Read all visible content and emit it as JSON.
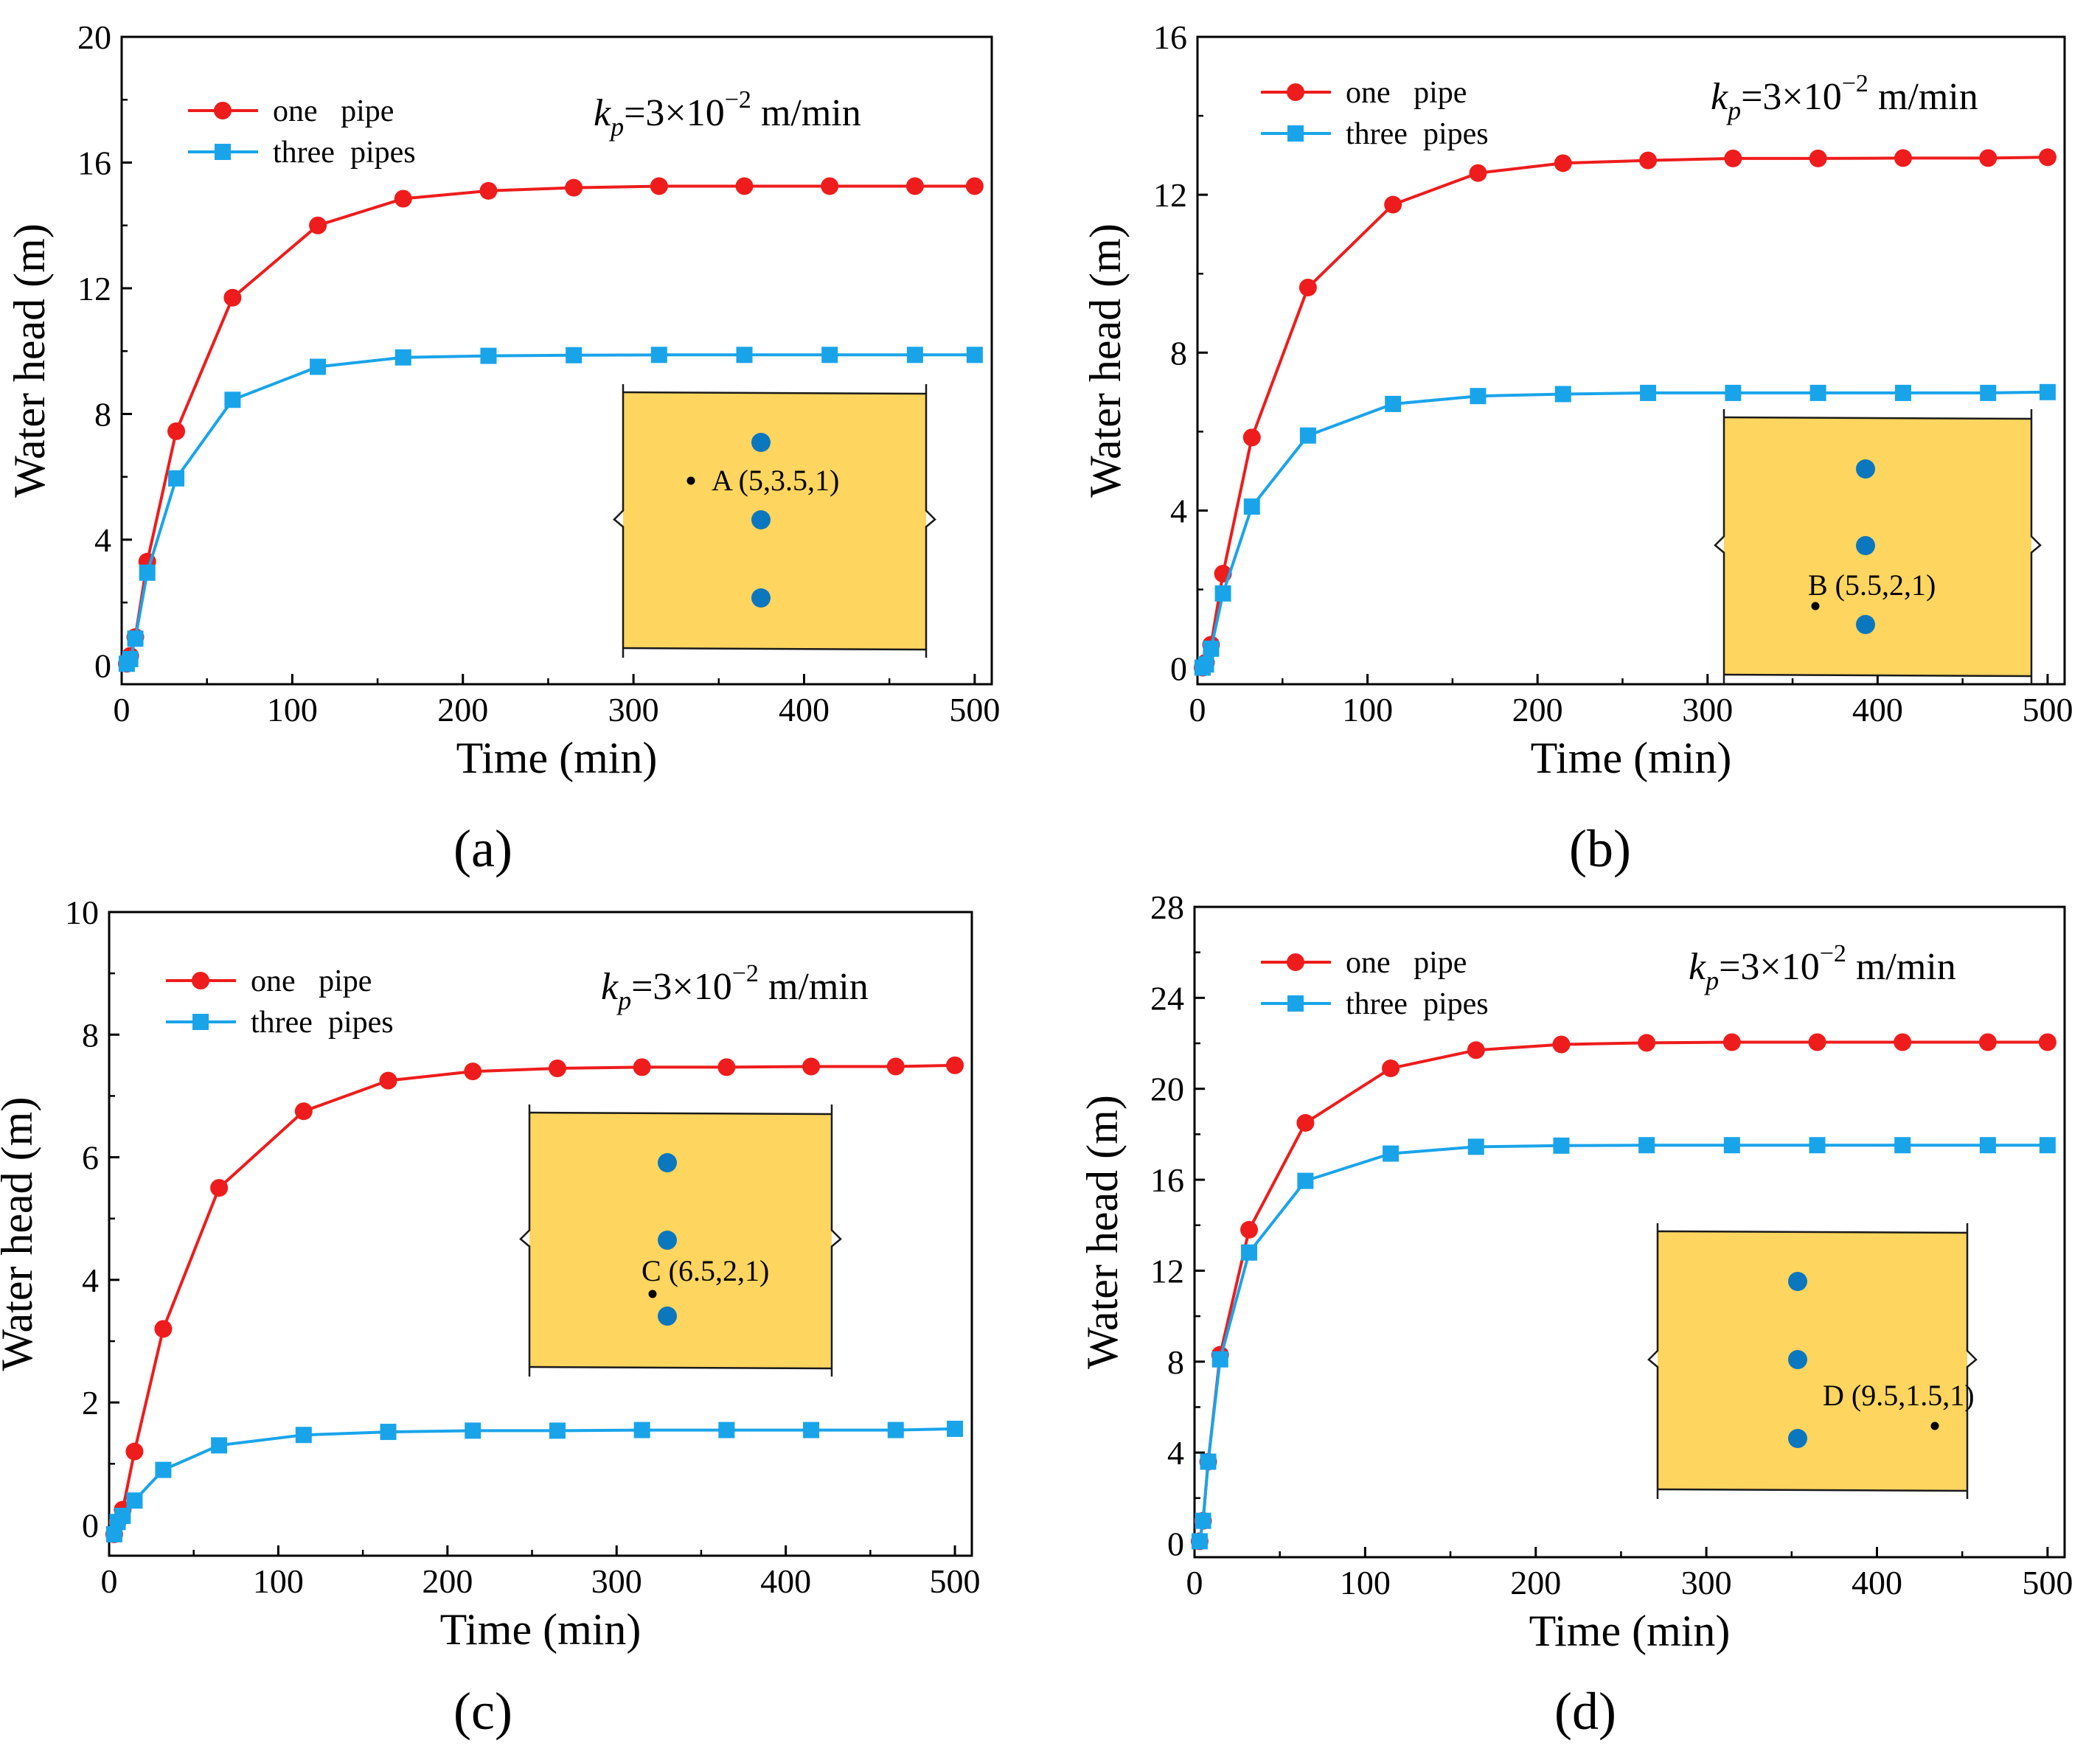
{
  "figure": {
    "colors": {
      "one_pipe": "#ee1c1c",
      "three_pipes": "#19a4ea",
      "inset_fill": "#fdd55f",
      "pipe_dot": "#0b77bf"
    }
  },
  "chart_data": [
    {
      "type": "line",
      "panel": "a",
      "caption": "(a)",
      "xlabel": "Time (min)",
      "ylabel": "Water head (m)",
      "xlim": [
        0,
        510
      ],
      "ylim": [
        -0.6,
        20
      ],
      "xticks": [
        0,
        100,
        200,
        300,
        400,
        500
      ],
      "yticks": [
        0,
        4,
        8,
        12,
        16,
        20
      ],
      "grid": false,
      "legend": "top-left",
      "annotation": {
        "k": "k",
        "sub": "p",
        "rest": "=3×10",
        "exp": "−2",
        "unit": " m/min"
      },
      "inset_label": "A (5,3.5,1)",
      "series": [
        {
          "name": "one   pipe",
          "marker": "circle",
          "x": [
            3,
            5,
            8,
            15,
            32,
            65,
            115,
            165,
            215,
            265,
            315,
            365,
            415,
            465,
            500
          ],
          "y": [
            0.05,
            0.3,
            0.9,
            3.3,
            7.45,
            11.7,
            14.0,
            14.85,
            15.1,
            15.2,
            15.25,
            15.25,
            15.25,
            15.25,
            15.25
          ]
        },
        {
          "name": "three  pipes",
          "marker": "square",
          "x": [
            3,
            5,
            8,
            15,
            32,
            65,
            115,
            165,
            215,
            265,
            315,
            365,
            415,
            465,
            500
          ],
          "y": [
            0.05,
            0.2,
            0.85,
            2.95,
            5.95,
            8.45,
            9.5,
            9.8,
            9.85,
            9.87,
            9.88,
            9.88,
            9.88,
            9.88,
            9.88
          ]
        }
      ]
    },
    {
      "type": "line",
      "panel": "b",
      "caption": "(b)",
      "xlabel": "Time (min)",
      "ylabel": "Water head (m)",
      "xlim": [
        0,
        510
      ],
      "ylim": [
        -0.4,
        16
      ],
      "xticks": [
        0,
        100,
        200,
        300,
        400,
        500
      ],
      "yticks": [
        0,
        4,
        8,
        12,
        16
      ],
      "grid": false,
      "legend": "top-left",
      "annotation": {
        "k": "k",
        "sub": "p",
        "rest": "=3×10",
        "exp": "−2",
        "unit": " m/min"
      },
      "inset_label": "B (5.5,2,1)",
      "series": [
        {
          "name": "one   pipe",
          "marker": "circle",
          "x": [
            3,
            5,
            8,
            15,
            32,
            65,
            115,
            165,
            215,
            265,
            315,
            365,
            415,
            465,
            500
          ],
          "y": [
            0.02,
            0.15,
            0.6,
            2.4,
            5.85,
            9.65,
            11.75,
            12.55,
            12.8,
            12.87,
            12.92,
            12.92,
            12.93,
            12.93,
            12.95
          ]
        },
        {
          "name": "three  pipes",
          "marker": "square",
          "x": [
            3,
            5,
            8,
            15,
            32,
            65,
            115,
            165,
            215,
            265,
            315,
            365,
            415,
            465,
            500
          ],
          "y": [
            0.02,
            0.1,
            0.5,
            1.9,
            4.1,
            5.9,
            6.7,
            6.9,
            6.95,
            6.98,
            6.98,
            6.98,
            6.98,
            6.98,
            7.0
          ]
        }
      ]
    },
    {
      "type": "line",
      "panel": "c",
      "caption": "(c)",
      "xlabel": "Time (min)",
      "ylabel": "Water head (m)",
      "xlim": [
        0,
        510
      ],
      "ylim": [
        -0.5,
        10
      ],
      "xticks": [
        0,
        100,
        200,
        300,
        400,
        500
      ],
      "yticks": [
        0,
        2,
        4,
        6,
        8,
        10
      ],
      "grid": false,
      "legend": "top-left",
      "annotation": {
        "k": "k",
        "sub": "p",
        "rest": "=3×10",
        "exp": "−2",
        "unit": " m/min"
      },
      "inset_label": "C (6.5,2,1)",
      "series": [
        {
          "name": "one   pipe",
          "marker": "circle",
          "x": [
            3,
            5,
            8,
            15,
            32,
            65,
            115,
            165,
            215,
            265,
            315,
            365,
            415,
            465,
            500
          ],
          "y": [
            -0.15,
            0.05,
            0.25,
            1.2,
            3.2,
            5.5,
            6.75,
            7.25,
            7.4,
            7.45,
            7.47,
            7.47,
            7.48,
            7.48,
            7.5
          ]
        },
        {
          "name": "three  pipes",
          "marker": "square",
          "x": [
            3,
            5,
            8,
            15,
            32,
            65,
            115,
            165,
            215,
            265,
            315,
            365,
            415,
            465,
            500
          ],
          "y": [
            -0.15,
            0.05,
            0.15,
            0.4,
            0.9,
            1.3,
            1.47,
            1.52,
            1.54,
            1.54,
            1.55,
            1.55,
            1.55,
            1.55,
            1.57
          ]
        }
      ]
    },
    {
      "type": "line",
      "panel": "d",
      "caption": "(d)",
      "xlabel": "Time (min)",
      "ylabel": "Water head (m)",
      "xlim": [
        0,
        510
      ],
      "ylim": [
        -0.6,
        28
      ],
      "xticks": [
        0,
        100,
        200,
        300,
        400,
        500
      ],
      "yticks": [
        0,
        4,
        8,
        12,
        16,
        20,
        24,
        28
      ],
      "grid": false,
      "legend": "top-left",
      "annotation": {
        "k": "k",
        "sub": "p",
        "rest": "=3×10",
        "exp": "−2",
        "unit": " m/min"
      },
      "inset_label": "D (9.5,1.5,1)",
      "series": [
        {
          "name": "one   pipe",
          "marker": "circle",
          "x": [
            3,
            5,
            8,
            15,
            32,
            65,
            115,
            165,
            215,
            265,
            315,
            365,
            415,
            465,
            500
          ],
          "y": [
            0.1,
            1.0,
            3.6,
            8.3,
            13.8,
            18.5,
            20.9,
            21.7,
            21.95,
            22.02,
            22.05,
            22.05,
            22.05,
            22.05,
            22.05
          ]
        },
        {
          "name": "three  pipes",
          "marker": "square",
          "x": [
            3,
            5,
            8,
            15,
            32,
            65,
            115,
            165,
            215,
            265,
            315,
            365,
            415,
            465,
            500
          ],
          "y": [
            0.1,
            1.0,
            3.6,
            8.1,
            12.8,
            15.95,
            17.15,
            17.45,
            17.5,
            17.52,
            17.52,
            17.52,
            17.52,
            17.52,
            17.52
          ]
        }
      ]
    }
  ]
}
